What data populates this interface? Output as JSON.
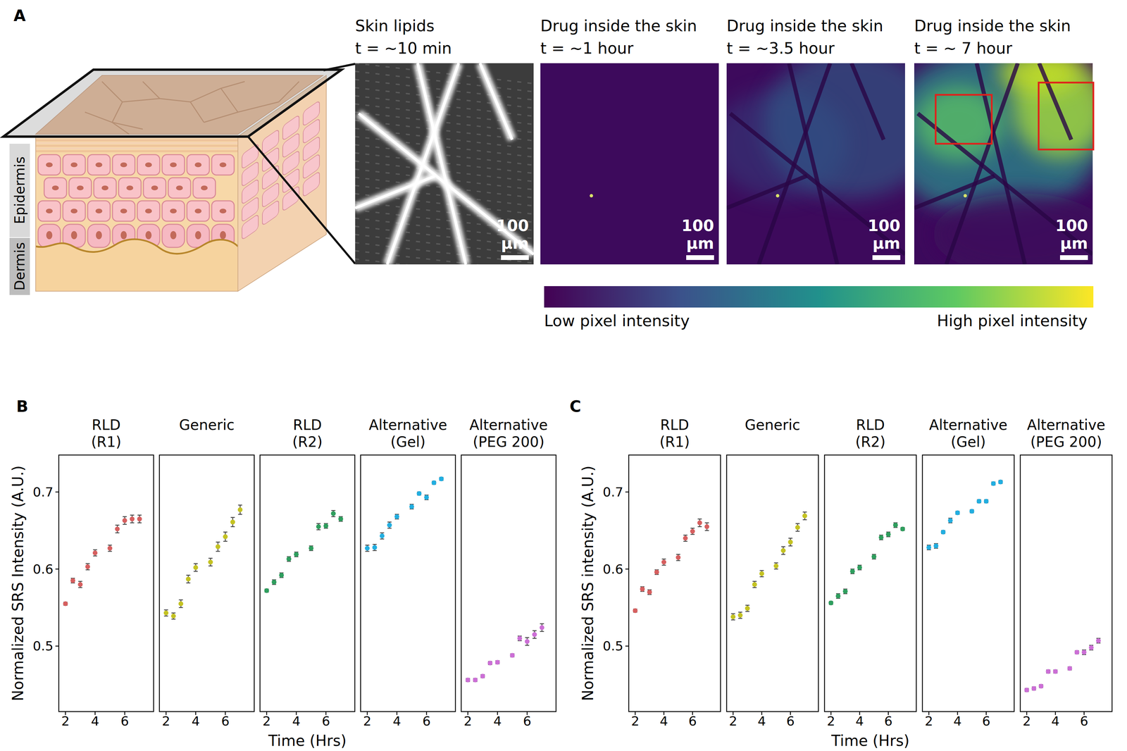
{
  "panel_a": {
    "label": "A",
    "skin_layers": [
      "Epidermis",
      "Dermis"
    ],
    "images": [
      {
        "title": "Skin lipids",
        "time": "t = ~10 min",
        "scale_bar": "100\nµm"
      },
      {
        "title": "Drug inside the skin",
        "time": "t = ~1 hour",
        "scale_bar": "100\nµm"
      },
      {
        "title": "Drug inside the skin",
        "time": "t = ~3.5 hour",
        "scale_bar": "100\nµm"
      },
      {
        "title": "Drug inside the skin",
        "time": "t = ~ 7 hour",
        "scale_bar": "100\nµm"
      }
    ],
    "colorbar": {
      "low_label": "Low pixel intensity",
      "high_label": "High pixel intensity"
    }
  },
  "panel_labels": [
    "B",
    "C"
  ],
  "chart_data": [
    {
      "type": "scatter",
      "title": "RLD\n(R1)",
      "ylabel": "Normalized SRS Intensity (A.U.)",
      "x": [
        2,
        2.5,
        3,
        3.5,
        4,
        5,
        5.5,
        6,
        6.5,
        7
      ],
      "values": [
        0.555,
        0.585,
        0.58,
        0.603,
        0.621,
        0.627,
        0.652,
        0.663,
        0.665,
        0.665
      ],
      "errors": [
        0.002,
        0.003,
        0.004,
        0.004,
        0.004,
        0.004,
        0.005,
        0.005,
        0.005,
        0.005
      ],
      "color": "#d65f5f",
      "marker": "circle",
      "xlim": [
        1.55,
        7.95
      ],
      "ylim": [
        0.415,
        0.748
      ],
      "xticks": [
        2,
        4,
        6
      ],
      "yticks": [
        0.5,
        0.6,
        0.7
      ]
    },
    {
      "type": "scatter",
      "title": "Generic",
      "x": [
        2,
        2.5,
        3,
        3.5,
        4,
        5,
        5.5,
        6,
        6.5,
        7
      ],
      "values": [
        0.543,
        0.539,
        0.555,
        0.587,
        0.602,
        0.609,
        0.629,
        0.642,
        0.661,
        0.677
      ],
      "errors": [
        0.004,
        0.004,
        0.005,
        0.005,
        0.005,
        0.005,
        0.006,
        0.006,
        0.006,
        0.006
      ],
      "color": "#c4c222",
      "marker": "circle",
      "xlim": [
        1.55,
        7.95
      ],
      "ylim": [
        0.415,
        0.748
      ],
      "xticks": [
        2,
        4,
        6
      ],
      "tick_labels": "x"
    },
    {
      "type": "scatter",
      "title": "RLD\n(R2)",
      "xlabel": "Time (Hrs)",
      "x": [
        2,
        2.5,
        3,
        3.5,
        4,
        5,
        5.5,
        6,
        6.5,
        7
      ],
      "values": [
        0.572,
        0.583,
        0.592,
        0.613,
        0.619,
        0.627,
        0.655,
        0.656,
        0.672,
        0.665
      ],
      "errors": [
        0.002,
        0.003,
        0.003,
        0.003,
        0.003,
        0.003,
        0.004,
        0.003,
        0.004,
        0.003
      ],
      "color": "#2f9e5e",
      "marker": "circle",
      "xlim": [
        1.55,
        7.95
      ],
      "ylim": [
        0.415,
        0.748
      ],
      "xticks": [
        2,
        4,
        6
      ],
      "tick_labels": "x"
    },
    {
      "type": "scatter",
      "title": "Alternative\n(Gel)",
      "x": [
        2,
        2.5,
        3,
        3.5,
        4,
        5,
        5.5,
        6,
        6.5,
        7
      ],
      "values": [
        0.627,
        0.628,
        0.643,
        0.657,
        0.668,
        0.681,
        0.698,
        0.693,
        0.712,
        0.717
      ],
      "errors": [
        0.004,
        0.004,
        0.004,
        0.004,
        0.003,
        0.003,
        0.002,
        0.003,
        0.002,
        0.002
      ],
      "color": "#22aee0",
      "marker": "circle",
      "xlim": [
        1.55,
        7.95
      ],
      "ylim": [
        0.415,
        0.748
      ],
      "xticks": [
        2,
        4,
        6
      ],
      "tick_labels": "x"
    },
    {
      "type": "scatter",
      "title": "Alternative\n(PEG 200)",
      "x": [
        2,
        2.5,
        3,
        3.5,
        4,
        5,
        5.5,
        6,
        6.5,
        7
      ],
      "values": [
        0.456,
        0.456,
        0.461,
        0.478,
        0.479,
        0.488,
        0.51,
        0.506,
        0.515,
        0.524
      ],
      "errors": [
        0.002,
        0.002,
        0.002,
        0.002,
        0.002,
        0.002,
        0.003,
        0.005,
        0.005,
        0.005
      ],
      "color": "#cc6fd6",
      "marker": "circle",
      "xlim": [
        1.55,
        7.95
      ],
      "ylim": [
        0.415,
        0.748
      ],
      "xticks": [
        2,
        4,
        6
      ],
      "tick_labels": "x"
    },
    {
      "type": "scatter",
      "title": "RLD\n(R1)",
      "ylabel": "Normalized SRS intensity (A.U.)",
      "x": [
        2,
        2.5,
        3,
        3.5,
        4,
        5,
        5.5,
        6,
        6.5,
        7
      ],
      "values": [
        0.546,
        0.574,
        0.57,
        0.596,
        0.609,
        0.615,
        0.64,
        0.649,
        0.66,
        0.655
      ],
      "errors": [
        0.002,
        0.003,
        0.003,
        0.003,
        0.004,
        0.004,
        0.004,
        0.004,
        0.005,
        0.005
      ],
      "color": "#d65f5f",
      "marker": "circle",
      "xlim": [
        1.55,
        7.95
      ],
      "ylim": [
        0.415,
        0.748
      ],
      "xticks": [
        2,
        4,
        6
      ],
      "yticks": [
        0.5,
        0.6,
        0.7
      ]
    },
    {
      "type": "scatter",
      "title": "Generic",
      "x": [
        2,
        2.5,
        3,
        3.5,
        4,
        5,
        5.5,
        6,
        6.5,
        7
      ],
      "values": [
        0.538,
        0.54,
        0.549,
        0.58,
        0.594,
        0.604,
        0.624,
        0.635,
        0.654,
        0.669
      ],
      "errors": [
        0.004,
        0.004,
        0.004,
        0.004,
        0.004,
        0.004,
        0.005,
        0.005,
        0.005,
        0.005
      ],
      "color": "#c4c222",
      "marker": "circle",
      "xlim": [
        1.55,
        7.95
      ],
      "ylim": [
        0.415,
        0.748
      ],
      "xticks": [
        2,
        4,
        6
      ],
      "tick_labels": "x"
    },
    {
      "type": "scatter",
      "title": "RLD\n(R2)",
      "xlabel": "Time (Hrs)",
      "x": [
        2,
        2.5,
        3,
        3.5,
        4,
        5,
        5.5,
        6,
        6.5,
        7
      ],
      "values": [
        0.556,
        0.565,
        0.571,
        0.597,
        0.602,
        0.616,
        0.641,
        0.645,
        0.657,
        0.652
      ],
      "errors": [
        0.002,
        0.003,
        0.003,
        0.003,
        0.003,
        0.003,
        0.003,
        0.003,
        0.003,
        0.002
      ],
      "color": "#2f9e5e",
      "marker": "circle",
      "xlim": [
        1.55,
        7.95
      ],
      "ylim": [
        0.415,
        0.748
      ],
      "xticks": [
        2,
        4,
        6
      ],
      "tick_labels": "x"
    },
    {
      "type": "scatter",
      "title": "Alternative\n(Gel)",
      "x": [
        2,
        2.5,
        3,
        3.5,
        4,
        5,
        5.5,
        6,
        6.5,
        7
      ],
      "values": [
        0.628,
        0.63,
        0.648,
        0.663,
        0.673,
        0.675,
        0.688,
        0.688,
        0.711,
        0.713
      ],
      "errors": [
        0.003,
        0.003,
        0.002,
        0.003,
        0.002,
        0.002,
        0.002,
        0.002,
        0.002,
        0.002
      ],
      "color": "#22aee0",
      "marker": "circle",
      "xlim": [
        1.55,
        7.95
      ],
      "ylim": [
        0.415,
        0.748
      ],
      "xticks": [
        2,
        4,
        6
      ],
      "tick_labels": "x"
    },
    {
      "type": "scatter",
      "title": "Alternative\n(PEG 200)",
      "x": [
        2,
        2.5,
        3,
        3.5,
        4,
        5,
        5.5,
        6,
        6.5,
        7
      ],
      "values": [
        0.443,
        0.445,
        0.448,
        0.467,
        0.467,
        0.471,
        0.492,
        0.492,
        0.498,
        0.507
      ],
      "errors": [
        0.002,
        0.002,
        0.002,
        0.002,
        0.002,
        0.002,
        0.002,
        0.003,
        0.003,
        0.003
      ],
      "color": "#cc6fd6",
      "marker": "circle",
      "xlim": [
        1.55,
        7.95
      ],
      "ylim": [
        0.415,
        0.748
      ],
      "xticks": [
        2,
        4,
        6
      ],
      "tick_labels": "x"
    }
  ]
}
